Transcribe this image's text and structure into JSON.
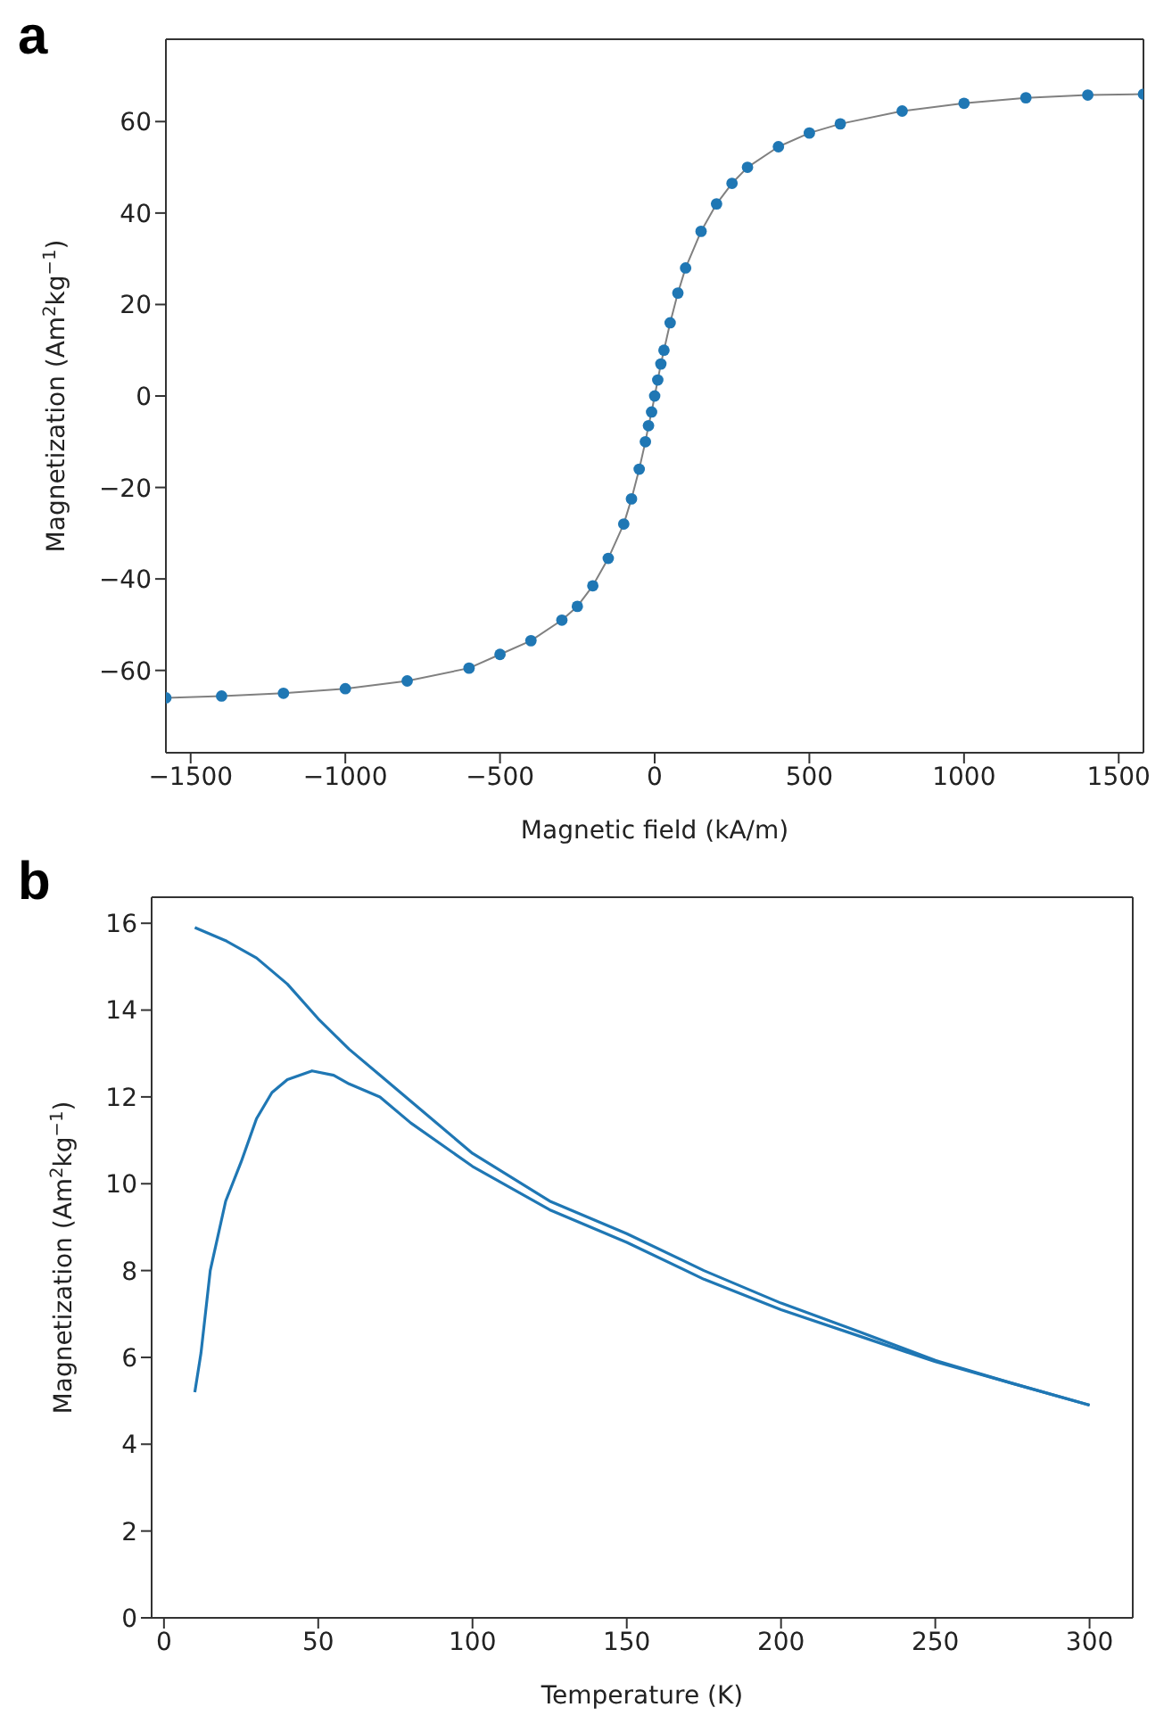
{
  "chart_data": [
    {
      "type": "scatter",
      "title": "a",
      "xlabel": "Magnetic field  (kA/m)",
      "ylabel": "Magnetization (Am$^{2}$kg$^{−1}$)",
      "xlim": [
        -1580,
        1580
      ],
      "ylim": [
        -78,
        78
      ],
      "xticks": [
        {
          "value": -1500,
          "label": "−1500"
        },
        {
          "value": -1000,
          "label": "−1000"
        },
        {
          "value": -500,
          "label": "−500"
        },
        0,
        500,
        1000,
        1500
      ],
      "yticks": [
        {
          "value": -60,
          "label": "−60"
        },
        {
          "value": -40,
          "label": "−40"
        },
        {
          "value": -20,
          "label": "−20"
        },
        0,
        20,
        40,
        60
      ],
      "series": [
        {
          "type": "scatter",
          "marker": "circle",
          "color": "#1f77b4",
          "x": [
            -1580,
            -1400,
            -1200,
            -1000,
            -800,
            -600,
            -500,
            -400,
            -300,
            -250,
            -200,
            -150,
            -100,
            -75,
            -50,
            -30,
            -20,
            -10,
            0,
            10,
            20,
            30,
            50,
            75,
            100,
            150,
            200,
            250,
            300,
            400,
            500,
            600,
            800,
            1000,
            1200,
            1400,
            1580
          ],
          "values": [
            -66,
            -65.6,
            -65,
            -64,
            -62.3,
            -59.5,
            -56.5,
            -53.5,
            -49,
            -46,
            -41.5,
            -35.5,
            -28,
            -22.5,
            -16,
            -10,
            -6.5,
            -3.5,
            0,
            3.5,
            7,
            10,
            16,
            22.5,
            28,
            36,
            42,
            46.5,
            50,
            54.5,
            57.5,
            59.5,
            62.3,
            64,
            65.2,
            65.8,
            66
          ]
        },
        {
          "type": "line",
          "marker": "none",
          "color": "#808080",
          "x": [
            -1580,
            -1400,
            -1200,
            -1000,
            -800,
            -600,
            -500,
            -400,
            -300,
            -250,
            -200,
            -150,
            -100,
            -75,
            -50,
            -30,
            -20,
            -10,
            0,
            10,
            20,
            30,
            50,
            75,
            100,
            150,
            200,
            250,
            300,
            400,
            500,
            600,
            800,
            1000,
            1200,
            1400,
            1580
          ],
          "values": [
            -66,
            -65.6,
            -65,
            -64,
            -62.3,
            -59.5,
            -56.5,
            -53.5,
            -49,
            -46,
            -41.5,
            -35.5,
            -28,
            -22.5,
            -16,
            -10,
            -6.5,
            -3.5,
            0,
            3.5,
            7,
            10,
            16,
            22.5,
            28,
            36,
            42,
            46.5,
            50,
            54.5,
            57.5,
            59.5,
            62.3,
            64,
            65.2,
            65.8,
            66
          ]
        }
      ]
    },
    {
      "type": "line",
      "title": "b",
      "xlabel": "Temperature (K)",
      "ylabel": "Magnetization (Am$^{2}$kg$^{−1}$)",
      "marker": "none",
      "xlim": [
        -4,
        314
      ],
      "ylim": [
        0,
        16.6
      ],
      "xticks": [
        0,
        50,
        100,
        150,
        200,
        250,
        300
      ],
      "yticks": [
        0,
        2,
        4,
        6,
        8,
        10,
        12,
        14,
        16
      ],
      "series": [
        {
          "color": "#1f77b4",
          "x": [
            10,
            20,
            30,
            40,
            50,
            60,
            70,
            80,
            100,
            125,
            150,
            175,
            200,
            225,
            250,
            275,
            300
          ],
          "values": [
            15.9,
            15.6,
            15.2,
            14.6,
            13.8,
            13.1,
            12.5,
            11.9,
            10.7,
            9.6,
            8.85,
            8,
            7.25,
            6.6,
            5.93,
            5.4,
            4.9
          ]
        },
        {
          "color": "#1f77b4",
          "x": [
            10,
            12,
            15,
            20,
            25,
            30,
            35,
            40,
            48,
            55,
            60,
            70,
            80,
            100,
            125,
            150,
            175,
            200,
            225,
            250,
            275,
            300
          ],
          "values": [
            5.2,
            6.1,
            8,
            9.6,
            10.5,
            11.5,
            12.1,
            12.4,
            12.6,
            12.5,
            12.3,
            12,
            11.4,
            10.4,
            9.4,
            8.65,
            7.8,
            7.1,
            6.5,
            5.9,
            5.4,
            4.9
          ]
        }
      ]
    }
  ]
}
